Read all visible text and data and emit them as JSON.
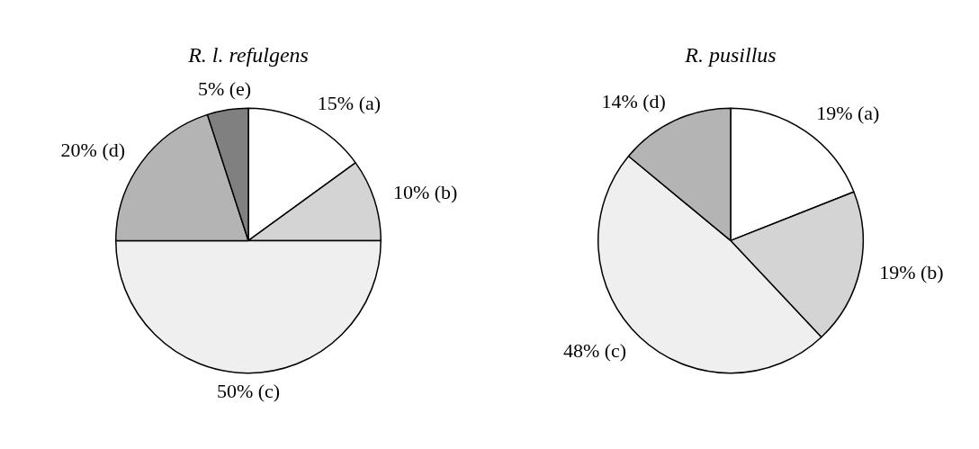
{
  "chart_data": [
    {
      "type": "pie",
      "title": "R. l. refulgens",
      "categories": [
        "(a)",
        "(b)",
        "(c)",
        "(d)",
        "(e)"
      ],
      "values": [
        15,
        10,
        50,
        20,
        5
      ],
      "value_labels": [
        "15%",
        "10%",
        "50%",
        "20%",
        "5%"
      ],
      "colors": [
        "#ffffff",
        "#d4d4d4",
        "#efefef",
        "#b4b4b4",
        "#808080"
      ]
    },
    {
      "type": "pie",
      "title": "R. pusillus",
      "categories": [
        "(a)",
        "(b)",
        "(c)",
        "(d)"
      ],
      "values": [
        19,
        19,
        48,
        14
      ],
      "value_labels": [
        "19%",
        "19%",
        "48%",
        "14%"
      ],
      "colors": [
        "#ffffff",
        "#d4d4d4",
        "#efefef",
        "#b4b4b4"
      ]
    }
  ]
}
